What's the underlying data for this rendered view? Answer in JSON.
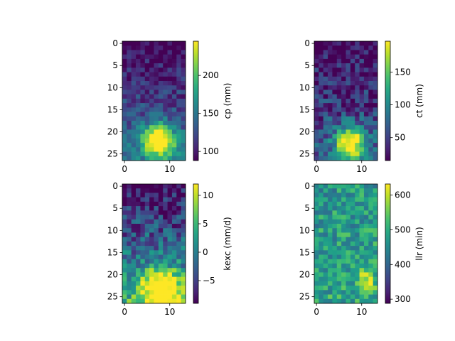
{
  "chart_data": [
    {
      "type": "heatmap",
      "colorbar_label": "cp (mm)",
      "colormap": "viridis",
      "rows": 27,
      "cols": 14,
      "x_ticks": [
        0,
        10
      ],
      "x_tick_labels": [
        "0",
        "10"
      ],
      "y_ticks": [
        0,
        5,
        10,
        15,
        20,
        25
      ],
      "y_tick_labels": [
        "0",
        "5",
        "10",
        "15",
        "20",
        "25"
      ],
      "colorbar_range": [
        88,
        245
      ],
      "colorbar_ticks": [
        100,
        150,
        200
      ],
      "colorbar_tick_labels": [
        "100",
        "150",
        "200"
      ],
      "field": {
        "base": 90,
        "grad": 55,
        "blob": 150,
        "blob_center": [
          22,
          7.5
        ],
        "blob_sigma": [
          2.5,
          2.5
        ],
        "noise": 22
      }
    },
    {
      "type": "heatmap",
      "colorbar_label": "ct (mm)",
      "colormap": "viridis",
      "rows": 27,
      "cols": 14,
      "x_ticks": [
        0,
        10
      ],
      "x_tick_labels": [
        "0",
        "10"
      ],
      "y_ticks": [
        0,
        5,
        10,
        15,
        20,
        25
      ],
      "y_tick_labels": [
        "0",
        "5",
        "10",
        "15",
        "20",
        "25"
      ],
      "colorbar_range": [
        15,
        197
      ],
      "colorbar_ticks": [
        50,
        100,
        150
      ],
      "colorbar_tick_labels": [
        "50",
        "100",
        "150"
      ],
      "field": {
        "base": 18,
        "grad": 50,
        "blob": 160,
        "blob_center": [
          22.5,
          7.5
        ],
        "blob_sigma": [
          2.7,
          2.4
        ],
        "noise": 35
      }
    },
    {
      "type": "heatmap",
      "colorbar_label": "kexc (mm/d)",
      "colormap": "viridis",
      "rows": 27,
      "cols": 14,
      "x_ticks": [
        0,
        10
      ],
      "x_tick_labels": [
        "0",
        "10"
      ],
      "y_ticks": [
        0,
        5,
        10,
        15,
        20,
        25
      ],
      "y_tick_labels": [
        "0",
        "5",
        "10",
        "15",
        "20",
        "25"
      ],
      "colorbar_range": [
        -9,
        12
      ],
      "colorbar_ticks": [
        -5,
        0,
        5,
        10
      ],
      "colorbar_tick_labels": [
        "−5",
        "0",
        "5",
        "10"
      ],
      "field": {
        "base": -8.5,
        "grad": 12,
        "blob": 15,
        "blob_center": [
          23,
          8
        ],
        "blob_sigma": [
          3,
          3.5
        ],
        "noise": 4.5
      }
    },
    {
      "type": "heatmap",
      "colorbar_label": "llr (min)",
      "colormap": "viridis",
      "rows": 27,
      "cols": 14,
      "x_ticks": [
        0,
        10
      ],
      "x_tick_labels": [
        "0",
        "10"
      ],
      "y_ticks": [
        0,
        5,
        10,
        15,
        20,
        25
      ],
      "y_tick_labels": [
        "0",
        "5",
        "10",
        "15",
        "20",
        "25"
      ],
      "colorbar_range": [
        288,
        632
      ],
      "colorbar_ticks": [
        300,
        400,
        500,
        600
      ],
      "colorbar_tick_labels": [
        "300",
        "400",
        "500",
        "600"
      ],
      "field": {
        "base": 470,
        "grad": 20,
        "blob": 130,
        "blob_center": [
          21,
          11
        ],
        "blob_sigma": [
          2,
          1.3
        ],
        "noise": 65
      }
    }
  ]
}
